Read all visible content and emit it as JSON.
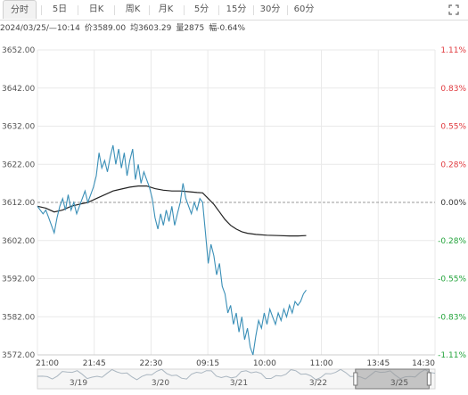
{
  "tabs": [
    {
      "label": "分时",
      "active": true
    },
    {
      "label": "5日"
    },
    {
      "label": "日K"
    },
    {
      "label": "周K"
    },
    {
      "label": "月K"
    },
    {
      "label": "5分"
    },
    {
      "label": "15分"
    },
    {
      "label": "30分"
    },
    {
      "label": "60分"
    }
  ],
  "info": {
    "datetime": "2024/03/25/—10:14",
    "price_label": "价",
    "price": "3589.00",
    "avg_label": "均",
    "avg": "3603.29",
    "vol_label": "量",
    "vol": "2875",
    "change_label": "幅",
    "change": "-0.64%"
  },
  "colors": {
    "price_line": "#3a8fb7",
    "avg_line": "#222222",
    "up": "#e0393e",
    "down": "#22a33a",
    "neutral": "#333333",
    "grid": "#e9e9e9",
    "ref_line": "#999999"
  },
  "chart_data": {
    "type": "line",
    "title": "",
    "reference_price": 3612.0,
    "ylim": [
      3572.0,
      3652.0
    ],
    "y_ticks": [
      "3652.00",
      "3642.00",
      "3632.00",
      "3622.00",
      "3612.00",
      "3602.00",
      "3592.00",
      "3582.00",
      "3572.00"
    ],
    "pct_ticks": [
      "1.11%",
      "0.83%",
      "0.55%",
      "0.28%",
      "0.00%",
      "-0.28%",
      "-0.55%",
      "-0.83%",
      "-1.11%"
    ],
    "x_ticks": [
      "21:00",
      "21:45",
      "22:30",
      "09:15",
      "10:00",
      "11:00",
      "13:45",
      "14:30"
    ],
    "grid": true,
    "price_series": [
      [
        0,
        3611
      ],
      [
        1,
        3610
      ],
      [
        2,
        3609
      ],
      [
        3,
        3610
      ],
      [
        4,
        3608
      ],
      [
        5,
        3606
      ],
      [
        6,
        3604
      ],
      [
        7,
        3608
      ],
      [
        8,
        3611
      ],
      [
        9,
        3613
      ],
      [
        10,
        3610
      ],
      [
        11,
        3614
      ],
      [
        12,
        3610
      ],
      [
        13,
        3612
      ],
      [
        14,
        3609
      ],
      [
        15,
        3611
      ],
      [
        16,
        3613
      ],
      [
        17,
        3615
      ],
      [
        18,
        3612
      ],
      [
        19,
        3614
      ],
      [
        20,
        3616
      ],
      [
        21,
        3619
      ],
      [
        22,
        3625
      ],
      [
        23,
        3621
      ],
      [
        24,
        3623
      ],
      [
        25,
        3620
      ],
      [
        26,
        3624
      ],
      [
        27,
        3627
      ],
      [
        28,
        3622
      ],
      [
        29,
        3626
      ],
      [
        30,
        3621
      ],
      [
        31,
        3625
      ],
      [
        32,
        3619
      ],
      [
        33,
        3623
      ],
      [
        34,
        3626
      ],
      [
        35,
        3618
      ],
      [
        36,
        3622
      ],
      [
        37,
        3617
      ],
      [
        38,
        3620
      ],
      [
        39,
        3618
      ],
      [
        40,
        3616
      ],
      [
        41,
        3613
      ],
      [
        42,
        3608
      ],
      [
        43,
        3605
      ],
      [
        44,
        3609
      ],
      [
        45,
        3606
      ],
      [
        46,
        3610
      ],
      [
        47,
        3607
      ],
      [
        48,
        3611
      ],
      [
        49,
        3606
      ],
      [
        50,
        3609
      ],
      [
        51,
        3612
      ],
      [
        52,
        3617
      ],
      [
        53,
        3613
      ],
      [
        54,
        3611
      ],
      [
        55,
        3609
      ],
      [
        56,
        3612
      ],
      [
        57,
        3610
      ],
      [
        58,
        3613
      ],
      [
        59,
        3612
      ],
      [
        60,
        3604
      ],
      [
        61,
        3596
      ],
      [
        62,
        3601
      ],
      [
        63,
        3598
      ],
      [
        64,
        3593
      ],
      [
        65,
        3596
      ],
      [
        66,
        3590
      ],
      [
        67,
        3588
      ],
      [
        68,
        3583
      ],
      [
        69,
        3585
      ],
      [
        70,
        3580
      ],
      [
        71,
        3583
      ],
      [
        72,
        3578
      ],
      [
        73,
        3582
      ],
      [
        74,
        3576
      ],
      [
        75,
        3579
      ],
      [
        76,
        3574
      ],
      [
        77,
        3572
      ],
      [
        78,
        3577
      ],
      [
        79,
        3581
      ],
      [
        80,
        3579
      ],
      [
        81,
        3583
      ],
      [
        82,
        3580
      ],
      [
        83,
        3584
      ],
      [
        84,
        3582
      ],
      [
        85,
        3580
      ],
      [
        86,
        3583
      ],
      [
        87,
        3581
      ],
      [
        88,
        3584
      ],
      [
        89,
        3582
      ],
      [
        90,
        3585
      ],
      [
        91,
        3583
      ],
      [
        92,
        3586
      ],
      [
        93,
        3585
      ],
      [
        94,
        3586
      ],
      [
        95,
        3588
      ],
      [
        96,
        3589
      ]
    ],
    "avg_series": [
      [
        0,
        3611
      ],
      [
        3,
        3610.5
      ],
      [
        6,
        3609.5
      ],
      [
        9,
        3610
      ],
      [
        12,
        3611
      ],
      [
        15,
        3611.5
      ],
      [
        18,
        3612
      ],
      [
        21,
        3613
      ],
      [
        24,
        3614
      ],
      [
        27,
        3615
      ],
      [
        30,
        3615.5
      ],
      [
        33,
        3616
      ],
      [
        36,
        3616.3
      ],
      [
        39,
        3616.3
      ],
      [
        42,
        3615.6
      ],
      [
        45,
        3615.2
      ],
      [
        48,
        3615
      ],
      [
        51,
        3615
      ],
      [
        54,
        3614.8
      ],
      [
        57,
        3614.6
      ],
      [
        59,
        3614.5
      ],
      [
        61,
        3613
      ],
      [
        63,
        3611.5
      ],
      [
        65,
        3609.5
      ],
      [
        67,
        3607.5
      ],
      [
        69,
        3606
      ],
      [
        71,
        3605
      ],
      [
        73,
        3604.3
      ],
      [
        75,
        3603.9
      ],
      [
        78,
        3603.6
      ],
      [
        82,
        3603.4
      ],
      [
        86,
        3603.3
      ],
      [
        90,
        3603.2
      ],
      [
        93,
        3603.2
      ],
      [
        96,
        3603.29
      ]
    ],
    "x_max": 142,
    "navigator": {
      "labels": [
        "3/19",
        "3/20",
        "3/21",
        "3/22",
        "3/25"
      ],
      "window": [
        0.8,
        0.985
      ]
    }
  }
}
